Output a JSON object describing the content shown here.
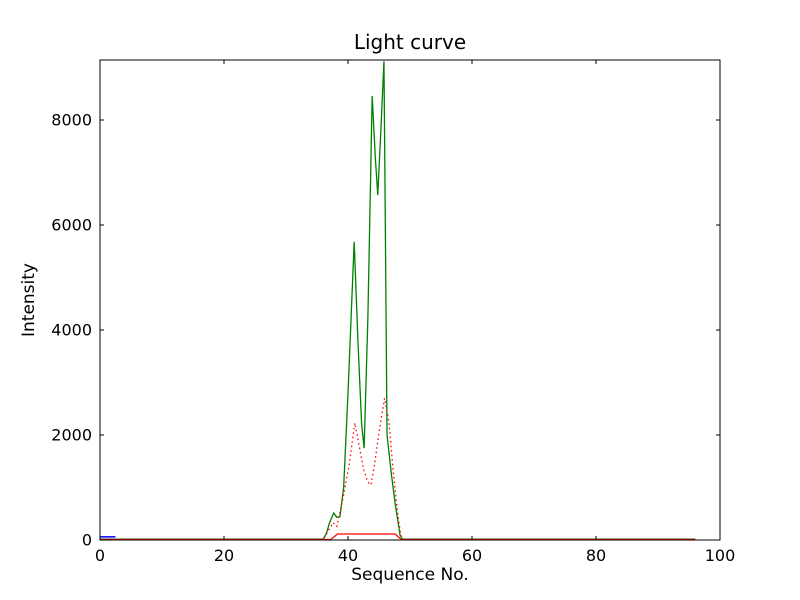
{
  "figure": {
    "background": "#ffffff"
  },
  "chart_data": {
    "type": "line",
    "title": "Light curve",
    "xlabel": "Sequence No.",
    "ylabel": "Intensity",
    "xlim": [
      0,
      100
    ],
    "ylim": [
      0,
      9143
    ],
    "xticks": [
      0,
      20,
      40,
      60,
      80,
      100
    ],
    "yticks": [
      0,
      2000,
      4000,
      6000,
      8000
    ],
    "grid": false,
    "legend": null,
    "axis_color": "#000000",
    "tick_length": 4,
    "series": [
      {
        "name": "green-solid",
        "color": "#008000",
        "style": "solid",
        "width": 1.3,
        "points": [
          [
            0,
            15
          ],
          [
            36,
            15
          ],
          [
            36.5,
            120
          ],
          [
            37.0,
            320
          ],
          [
            37.7,
            515
          ],
          [
            38.2,
            430
          ],
          [
            38.7,
            445
          ],
          [
            39.3,
            1000
          ],
          [
            40.0,
            2800
          ],
          [
            41.0,
            5680
          ],
          [
            41.6,
            3800
          ],
          [
            42.2,
            2200
          ],
          [
            42.6,
            1750
          ],
          [
            43.2,
            4200
          ],
          [
            43.9,
            8460
          ],
          [
            44.4,
            7300
          ],
          [
            44.8,
            6570
          ],
          [
            45.3,
            7800
          ],
          [
            45.8,
            9120
          ],
          [
            46.3,
            2000
          ],
          [
            47.0,
            1250
          ],
          [
            47.6,
            700
          ],
          [
            48.4,
            90
          ],
          [
            48.8,
            15
          ],
          [
            96,
            15
          ]
        ]
      },
      {
        "name": "red-dotted",
        "color": "#ff0000",
        "style": "dotted",
        "width": 1.3,
        "points": [
          [
            0,
            10
          ],
          [
            36,
            10
          ],
          [
            36.9,
            190
          ],
          [
            37.6,
            330
          ],
          [
            38.2,
            260
          ],
          [
            39.2,
            800
          ],
          [
            40.2,
            1440
          ],
          [
            41.1,
            2230
          ],
          [
            41.8,
            1800
          ],
          [
            42.5,
            1350
          ],
          [
            43.2,
            1100
          ],
          [
            43.7,
            1050
          ],
          [
            44.3,
            1450
          ],
          [
            45.0,
            2050
          ],
          [
            45.9,
            2700
          ],
          [
            46.6,
            2250
          ],
          [
            47.3,
            1300
          ],
          [
            47.9,
            620
          ],
          [
            48.5,
            90
          ],
          [
            48.8,
            10
          ],
          [
            96,
            10
          ]
        ]
      },
      {
        "name": "red-solid",
        "color": "#ff0000",
        "style": "solid",
        "width": 1.3,
        "points": [
          [
            0,
            8
          ],
          [
            37.2,
            8
          ],
          [
            38.3,
            114
          ],
          [
            47.6,
            114
          ],
          [
            48.6,
            8
          ],
          [
            96,
            8
          ]
        ]
      },
      {
        "name": "blue-solid",
        "color": "#0000ff",
        "style": "solid",
        "width": 1.5,
        "points": [
          [
            0,
            60
          ],
          [
            2.5,
            60
          ]
        ]
      }
    ]
  }
}
